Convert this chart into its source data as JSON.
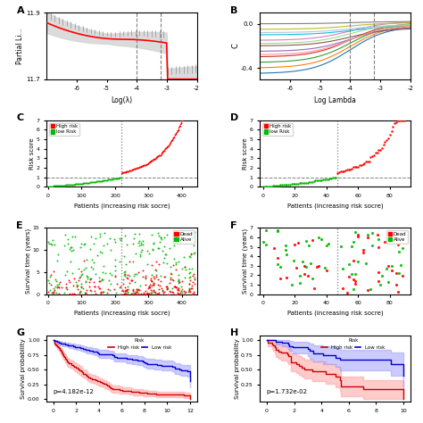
{
  "A": {
    "xlabel": "Log(λ)",
    "ylabel": "Partial Li...",
    "ylim": [
      11.7,
      11.9
    ],
    "xlim": [
      -7,
      -2
    ],
    "yticks": [
      11.7,
      11.9
    ],
    "xticks": [
      -6,
      -5,
      -4,
      -3,
      -2
    ],
    "vline1": -4.0,
    "vline2": -3.2
  },
  "B": {
    "xlabel": "Log Lambda",
    "ylabel": "C",
    "ylim": [
      -0.5,
      0.1
    ],
    "xlim": [
      -7,
      -2
    ],
    "xticks": [
      -6,
      -5,
      -4,
      -3,
      -2
    ],
    "vline1": -4.0,
    "vline2": -3.2
  },
  "C": {
    "xlabel": "Patients (increasing risk socre)",
    "ylabel": "Risk score",
    "ylim": [
      0,
      7
    ],
    "xlim": [
      0,
      440
    ],
    "xticks": [
      0,
      100,
      200,
      300,
      400
    ],
    "yticks": [
      0,
      1,
      2,
      3,
      4,
      5,
      6,
      7
    ],
    "cutoff_x": 220,
    "n_low": 220,
    "n_total": 440
  },
  "D": {
    "xlabel": "Patients (increasing risk socre)",
    "ylabel": "Risk score",
    "ylim": [
      0,
      7
    ],
    "xlim": [
      0,
      90
    ],
    "xticks": [
      0,
      20,
      40,
      60,
      80
    ],
    "yticks": [
      0,
      1,
      2,
      3,
      4,
      5,
      6,
      7
    ],
    "cutoff_x": 47,
    "n_low": 47,
    "n_total": 90
  },
  "E": {
    "xlabel": "Patients (increasing risk socre)",
    "ylabel": "Survival time (years)",
    "ylim": [
      0,
      15
    ],
    "xlim": [
      0,
      440
    ],
    "xticks": [
      0,
      100,
      200,
      300,
      400
    ],
    "yticks": [
      0,
      5,
      10,
      15
    ],
    "cutoff_x": 220,
    "n_total": 440
  },
  "F": {
    "xlabel": "Patients (increasing risk socre)",
    "ylabel": "Survival time (years)",
    "ylim": [
      0,
      7
    ],
    "xlim": [
      0,
      90
    ],
    "xticks": [
      0,
      20,
      40,
      60,
      80
    ],
    "yticks": [
      0,
      1,
      2,
      3,
      4,
      5,
      6,
      7
    ],
    "cutoff_x": 47,
    "n_total": 90
  },
  "G": {
    "ylabel": "Survival probability",
    "pvalue": "p=4.182e-12",
    "yticks": [
      0.0,
      0.25,
      0.5,
      0.75,
      1.0
    ],
    "high_color": "#FF9999",
    "low_color": "#9999FF",
    "high_line": "#CC0000",
    "low_line": "#0000CC"
  },
  "H": {
    "ylabel": "Survival probability",
    "pvalue": "p=1.732e-02",
    "yticks": [
      0.25,
      0.5,
      0.75,
      1.0
    ],
    "high_color": "#FF9999",
    "low_color": "#9999FF",
    "high_line": "#CC0000",
    "low_line": "#0000CC"
  },
  "colors": {
    "high_risk": "#FF0000",
    "low_risk": "#00BB00",
    "dead": "#FF0000",
    "alive": "#00BB00"
  }
}
